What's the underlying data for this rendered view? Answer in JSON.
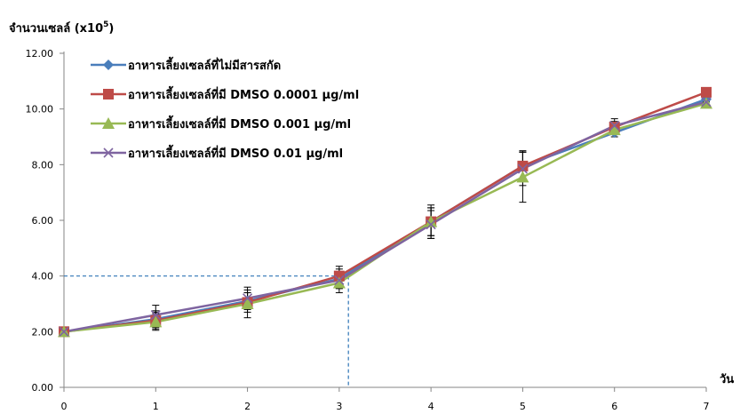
{
  "chart_data": {
    "type": "line",
    "ylabel": "จำนวนเซลล์ (x10",
    "ylabel_exponent": "5",
    "ylabel_suffix": ")",
    "xlabel": "วัน",
    "x": [
      0,
      1,
      2,
      3,
      4,
      5,
      6,
      7
    ],
    "xlim": [
      0,
      7
    ],
    "ylim": [
      0,
      12
    ],
    "yticks": [
      "0.00",
      "2.00",
      "4.00",
      "6.00",
      "8.00",
      "10.00",
      "12.00"
    ],
    "xticks": [
      "0",
      "1",
      "2",
      "3",
      "4",
      "5",
      "6",
      "7"
    ],
    "grid": false,
    "legend_position": "top-left",
    "series": [
      {
        "name": "อาหารเลี้ยงเซลล์ที่ไม่มีสารสกัด",
        "color": "#4a7ebb",
        "marker": "diamond",
        "values": [
          2.0,
          2.45,
          3.1,
          3.9,
          5.95,
          7.95,
          9.15,
          10.35
        ],
        "errors": [
          0.05,
          0.3,
          0.3,
          0.35,
          0.5,
          0.5,
          0.15,
          0.1
        ]
      },
      {
        "name": "อาหารเลี้ยงเซลล์ที่มี DMSO 0.0001 µg/ml",
        "color": "#be4b48",
        "marker": "square",
        "values": [
          2.0,
          2.4,
          3.05,
          4.0,
          5.95,
          7.95,
          9.35,
          10.6
        ],
        "errors": [
          0.05,
          0.3,
          0.35,
          0.35,
          0.5,
          0.55,
          0.2,
          0.1
        ]
      },
      {
        "name": "อาหารเลี้ยงเซลล์ที่มี DMSO 0.001 µg/ml",
        "color": "#98b954",
        "marker": "triangle",
        "values": [
          2.0,
          2.35,
          3.0,
          3.75,
          5.95,
          7.55,
          9.25,
          10.2
        ],
        "errors": [
          0.05,
          0.3,
          0.5,
          0.35,
          0.6,
          0.9,
          0.15,
          0.1
        ]
      },
      {
        "name": "อาหารเลี้ยงเซลล์ที่มี DMSO 0.01 µg/ml",
        "color": "#7e64a0",
        "marker": "x",
        "values": [
          2.0,
          2.6,
          3.2,
          3.85,
          5.85,
          7.85,
          9.4,
          10.25
        ],
        "errors": [
          0.05,
          0.35,
          0.4,
          0.3,
          0.5,
          0.6,
          0.25,
          0.1
        ]
      }
    ],
    "reference_line": {
      "x": 3.1,
      "y": 4.0,
      "color": "#2e75b6"
    }
  }
}
